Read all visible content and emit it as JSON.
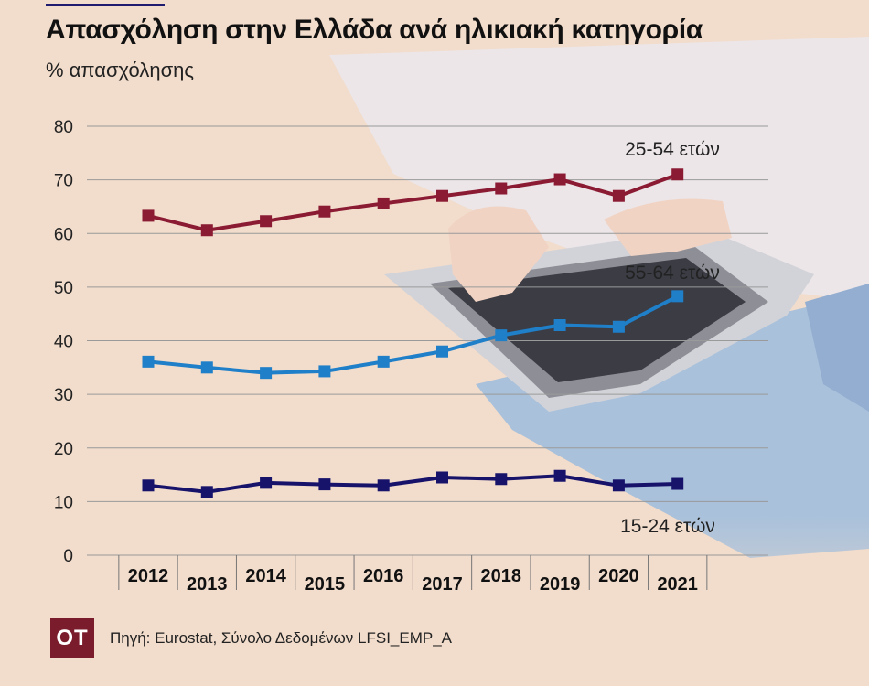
{
  "title": "Απασχόληση στην Ελλάδα ανά ηλικιακή κατηγορία",
  "subtitle": "% απασχόλησης",
  "source": "Πηγή: Eurostat, Σύνολο Δεδομένων LFSI_EMP_A",
  "logo": "OT",
  "colors": {
    "background": "#f2dccb",
    "series_25_54": "#8b1a33",
    "series_55_64": "#1f7fc9",
    "series_15_24": "#17136b",
    "grid": "#9a9a9a"
  },
  "chart_data": {
    "type": "line",
    "categories": [
      "2012",
      "2013",
      "2014",
      "2015",
      "2016",
      "2017",
      "2018",
      "2019",
      "2020",
      "2021"
    ],
    "ylim": [
      0,
      80
    ],
    "yticks": [
      0,
      10,
      20,
      30,
      40,
      50,
      60,
      70,
      80
    ],
    "grid": true,
    "series": [
      {
        "name": "25-54 ετών",
        "color": "#8b1a33",
        "values": [
          63.3,
          60.6,
          62.3,
          64.1,
          65.6,
          67.0,
          68.4,
          70.1,
          67.0,
          71.0
        ]
      },
      {
        "name": "55-64 ετών",
        "color": "#1f7fc9",
        "values": [
          36.1,
          35.0,
          34.0,
          34.3,
          36.1,
          38.0,
          41.0,
          42.9,
          42.6,
          48.3
        ]
      },
      {
        "name": "15-24 ετών",
        "color": "#17136b",
        "values": [
          13.0,
          11.8,
          13.5,
          13.2,
          13.0,
          14.5,
          14.2,
          14.8,
          13.0,
          13.3
        ]
      }
    ]
  }
}
